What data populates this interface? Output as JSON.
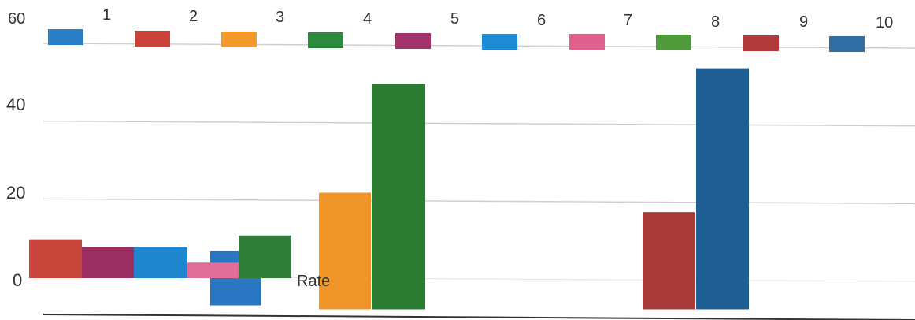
{
  "chart_data": {
    "type": "bar",
    "ylim": [
      0,
      60
    ],
    "y_ticks": [
      "0",
      "20",
      "40",
      "60"
    ],
    "grid": true,
    "legend": {
      "placement": "top",
      "labels": [
        "1",
        "2",
        "3",
        "4",
        "5",
        "6",
        "7",
        "8",
        "9",
        "10"
      ],
      "colors": [
        "#2a7fc9",
        "#c9423a",
        "#f39a2b",
        "#2c8a3e",
        "#a2336b",
        "#1f8ad6",
        "#e0608e",
        "#4f9a3a",
        "#b33a3a",
        "#2f6fa3"
      ]
    },
    "annotation": "Rate",
    "bars": [
      {
        "series": "2",
        "color": "#c9463c",
        "value": 10
      },
      {
        "series": "5",
        "color": "#9c2f62",
        "value": 8
      },
      {
        "series": "6",
        "color": "#1f86cf",
        "value": 8
      },
      {
        "series": "7",
        "color": "#de6e97",
        "value": 4
      },
      {
        "series": "1",
        "color": "#2b76c3",
        "value": 7
      },
      {
        "series": "4",
        "color": "#2f7d38",
        "value": 11
      },
      {
        "series": "3",
        "color": "#f0952a",
        "value": 22
      },
      {
        "series": "4",
        "color": "#2c7b32",
        "value": 50
      },
      {
        "series": "9",
        "color": "#a93a3a",
        "value": 17
      },
      {
        "series": "10",
        "color": "#1f5f93",
        "value": 54
      }
    ]
  }
}
